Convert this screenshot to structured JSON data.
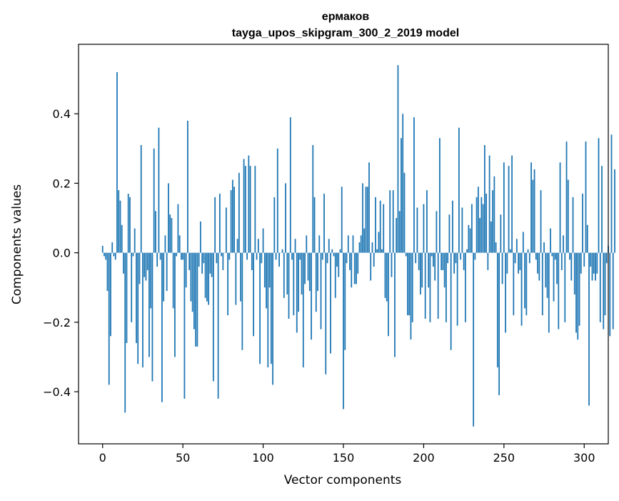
{
  "chart_data": {
    "type": "bar",
    "title": "ермаков",
    "subtitle": "tayga_upos_skipgram_300_2_2019 model",
    "xlabel": "Vector components",
    "ylabel": "Components values",
    "xlim": [
      -15,
      315
    ],
    "ylim": [
      -0.55,
      0.6
    ],
    "xticks": [
      0,
      50,
      100,
      150,
      200,
      250,
      300
    ],
    "xtick_labels": [
      "0",
      "50",
      "100",
      "150",
      "200",
      "250",
      "300"
    ],
    "yticks": [
      -0.4,
      -0.2,
      0.0,
      0.2,
      0.4
    ],
    "ytick_labels": [
      "−0.4",
      "−0.2",
      "0.0",
      "0.2",
      "0.4"
    ],
    "grid": false,
    "bar_color": "#1f77b4",
    "x_start": 0,
    "values": [
      0.02,
      -0.01,
      -0.02,
      -0.11,
      -0.38,
      -0.24,
      0.03,
      -0.01,
      -0.02,
      0.52,
      0.18,
      0.15,
      0.08,
      -0.06,
      -0.46,
      -0.26,
      0.17,
      0.16,
      -0.2,
      -0.01,
      0.07,
      -0.26,
      -0.32,
      -0.09,
      0.31,
      -0.33,
      -0.07,
      -0.08,
      -0.05,
      -0.3,
      -0.16,
      -0.37,
      0.3,
      0.12,
      -0.04,
      0.36,
      -0.02,
      -0.43,
      -0.14,
      0.05,
      -0.11,
      0.2,
      0.11,
      0.1,
      -0.16,
      -0.3,
      -0.01,
      0.14,
      0.05,
      -0.02,
      -0.02,
      -0.42,
      -0.1,
      0.38,
      -0.05,
      -0.14,
      -0.17,
      -0.22,
      -0.27,
      -0.27,
      -0.04,
      0.09,
      -0.06,
      -0.03,
      -0.13,
      -0.14,
      -0.15,
      -0.06,
      -0.07,
      -0.37,
      0.16,
      -0.03,
      -0.42,
      0.17,
      -0.01,
      -0.05,
      0.0,
      0.13,
      -0.18,
      -0.02,
      0.18,
      0.21,
      0.19,
      -0.15,
      0.04,
      0.23,
      -0.14,
      -0.28,
      0.27,
      0.25,
      -0.02,
      0.28,
      0.25,
      -0.05,
      -0.24,
      0.25,
      -0.02,
      0.04,
      -0.32,
      -0.03,
      0.07,
      -0.1,
      -0.16,
      -0.33,
      -0.1,
      -0.32,
      -0.38,
      0.16,
      -0.02,
      0.3,
      -0.04,
      0.0,
      0.01,
      -0.13,
      0.2,
      -0.12,
      -0.19,
      0.39,
      -0.02,
      -0.18,
      0.04,
      -0.23,
      -0.17,
      -0.02,
      -0.12,
      -0.33,
      -0.09,
      0.05,
      -0.08,
      -0.11,
      -0.25,
      0.31,
      0.16,
      -0.17,
      -0.11,
      0.05,
      -0.22,
      -0.02,
      0.17,
      -0.35,
      -0.03,
      0.04,
      -0.29,
      0.01,
      -0.01,
      -0.13,
      -0.04,
      -0.07,
      0.01,
      0.19,
      -0.45,
      -0.28,
      -0.03,
      0.05,
      -0.05,
      -0.1,
      0.05,
      -0.09,
      -0.09,
      -0.06,
      0.03,
      0.05,
      0.2,
      0.07,
      0.19,
      0.19,
      0.26,
      -0.08,
      0.03,
      -0.04,
      0.16,
      0.01,
      0.06,
      0.15,
      0.01,
      0.14,
      -0.13,
      -0.14,
      -0.24,
      0.18,
      -0.07,
      0.18,
      -0.3,
      0.1,
      0.54,
      0.12,
      0.33,
      0.4,
      0.23,
      -0.01,
      -0.18,
      -0.18,
      -0.25,
      -0.2,
      0.39,
      -0.03,
      0.13,
      -0.05,
      -0.12,
      -0.1,
      0.14,
      -0.19,
      0.18,
      -0.1,
      -0.2,
      -0.01,
      -0.04,
      -0.08,
      0.12,
      -0.19,
      0.33,
      -0.05,
      -0.05,
      -0.1,
      -0.2,
      -0.03,
      0.11,
      -0.28,
      0.15,
      -0.06,
      -0.03,
      -0.21,
      0.36,
      -0.02,
      0.13,
      -0.05,
      -0.2,
      0.01,
      0.08,
      0.07,
      0.14,
      -0.5,
      -0.02,
      0.16,
      0.19,
      0.1,
      0.16,
      0.14,
      0.31,
      0.17,
      -0.05,
      0.28,
      0.09,
      0.18,
      0.22,
      0.03,
      -0.33,
      -0.41,
      0.11,
      -0.09,
      0.26,
      -0.23,
      -0.06,
      0.25,
      0.01,
      0.28,
      -0.18,
      -0.03,
      0.04,
      -0.06,
      -0.05,
      -0.21,
      0.06,
      -0.16,
      -0.18,
      0.01,
      -0.03,
      0.26,
      0.21,
      0.24,
      -0.02,
      -0.06,
      -0.08,
      0.18,
      -0.18,
      0.03,
      -0.1,
      -0.13,
      -0.23,
      0.07,
      -0.01,
      -0.14,
      -0.02,
      -0.09,
      -0.22,
      0.26,
      -0.05,
      0.05,
      -0.2,
      0.32,
      0.21,
      -0.02,
      -0.08,
      0.16,
      -0.12,
      -0.23,
      -0.25,
      -0.21,
      -0.06,
      0.17,
      -0.04,
      0.32,
      0.08,
      -0.44,
      -0.04,
      -0.08,
      -0.06,
      -0.08,
      -0.06,
      0.33,
      -0.2,
      0.25,
      -0.22,
      -0.18,
      -0.03,
      0.02,
      -0.24,
      0.34,
      -0.22,
      0.24
    ]
  }
}
